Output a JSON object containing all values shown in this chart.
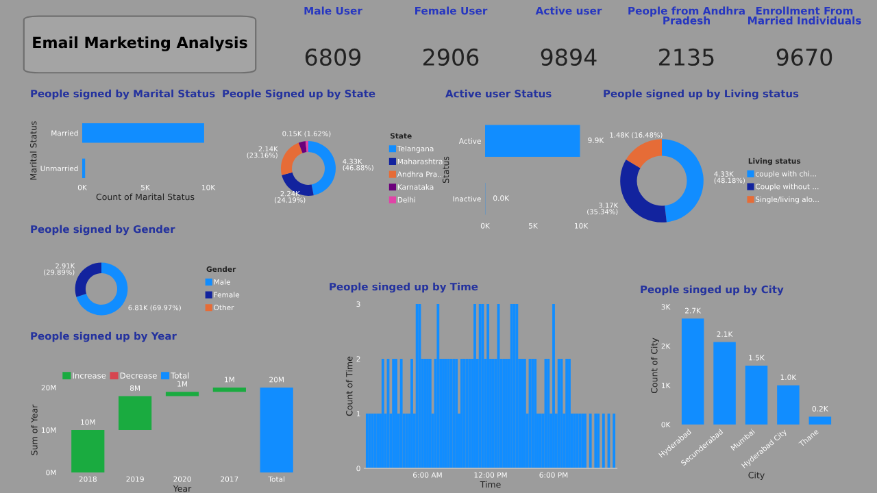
{
  "chart_data": [
    {
      "type": "other",
      "title": "Email Marketing Analysis"
    },
    {
      "type": "other",
      "categories": [
        "Male User",
        "Female User",
        "Active user",
        "People from Andhra\nPradesh",
        "Enrollment From\nMarried Individuals"
      ],
      "values": [
        6809,
        2906,
        9894,
        2135,
        9670
      ],
      "data_labels": true
    },
    {
      "type": "bar",
      "title": "People signed by Marital Status",
      "orientation": "horizontal",
      "categories": [
        "Married",
        "Unmarried"
      ],
      "values": [
        9670,
        230
      ],
      "color": "#118dff",
      "xlim": [
        0,
        10000
      ],
      "xticks": [
        {
          "value": 0,
          "label": "0K"
        },
        {
          "value": 5000,
          "label": "5K"
        },
        {
          "value": 10000,
          "label": "10K"
        }
      ],
      "xlabel": "Count of Marital Status",
      "ylabel": "Marital Status"
    },
    {
      "type": "donut",
      "title": "People Signed up by State",
      "legend_title": "State",
      "legend": "right",
      "categories": [
        "Telangana",
        "Maharashtra",
        "Andhra Pra...",
        "Karnataka",
        "Delhi"
      ],
      "values": [
        46.88,
        24.19,
        23.16,
        4.15,
        1.62
      ],
      "colors": [
        "#118dff",
        "#12239e",
        "#e66c37",
        "#6b007b",
        "#e044a7"
      ],
      "value_labels": [
        "4.33K\n(46.88%)",
        "2.24K\n(24.19%)",
        "2.14K\n(23.16%)",
        null,
        "0.15K (1.62%)"
      ]
    },
    {
      "type": "bar",
      "title": "Active user Status",
      "orientation": "horizontal",
      "categories": [
        "Active",
        "Inactive"
      ],
      "values": [
        9894,
        20
      ],
      "color": "#118dff",
      "value_labels": [
        "9.9K",
        "0.0K"
      ],
      "xlim": [
        0,
        10000
      ],
      "xticks": [
        {
          "value": 0,
          "label": "0K"
        },
        {
          "value": 5000,
          "label": "5K"
        },
        {
          "value": 10000,
          "label": "10K"
        }
      ],
      "ylabel": "Status"
    },
    {
      "type": "donut",
      "title": "People signed up by Living status",
      "legend_title": "Living status",
      "legend": "right",
      "categories": [
        "couple with chi...",
        "Couple without ...",
        "Single/living alo..."
      ],
      "values": [
        48.18,
        35.34,
        16.48
      ],
      "colors": [
        "#118dff",
        "#12239e",
        "#e66c37"
      ],
      "value_labels": [
        "4.33K\n(48.18%)",
        "3.17K\n(35.34%)",
        "1.48K (16.48%)"
      ]
    },
    {
      "type": "donut",
      "title": "People signed by Gender",
      "legend_title": "Gender",
      "legend": "right",
      "categories": [
        "Male",
        "Female",
        "Other"
      ],
      "values": [
        69.97,
        29.89,
        null
      ],
      "colors": [
        "#118dff",
        "#12239e",
        "#e66c37"
      ],
      "value_labels": [
        "6.81K (69.97%)",
        "2.91K\n(29.89%)",
        null
      ]
    },
    {
      "type": "bar",
      "title": "People signed up by Year",
      "legend": "top",
      "categories": [
        "2018",
        "2019",
        "2020",
        "2017",
        "Total"
      ],
      "series": [
        {
          "name": "Increase",
          "color": "#1aab40",
          "values": [
            10,
            8,
            1,
            1,
            null
          ],
          "base": [
            0,
            10,
            18,
            19,
            null
          ]
        },
        {
          "name": "Decrease",
          "color": "#d64550",
          "values": [
            null,
            null,
            null,
            null,
            null
          ]
        },
        {
          "name": "Total",
          "color": "#118dff",
          "values": [
            null,
            null,
            null,
            null,
            20
          ],
          "base": [
            null,
            null,
            null,
            null,
            0
          ]
        }
      ],
      "value_labels": [
        "10M",
        "8M",
        "1M",
        "1M",
        "20M"
      ],
      "ylim": [
        0,
        20
      ],
      "yticks": [
        {
          "value": 0,
          "label": "0M"
        },
        {
          "value": 10,
          "label": "10M"
        },
        {
          "value": 20,
          "label": "20M"
        }
      ],
      "xlabel": "Year",
      "ylabel": "Sum of Year"
    },
    {
      "type": "bar",
      "title": "People singed up by Time",
      "color": "#118dff",
      "x": [
        0.25,
        0.5,
        0.75,
        1.0,
        1.25,
        1.5,
        1.75,
        2.0,
        2.25,
        2.5,
        2.75,
        3.0,
        3.25,
        3.5,
        3.75,
        4.0,
        4.25,
        4.5,
        4.75,
        5.0,
        5.25,
        5.5,
        5.75,
        6.0,
        6.25,
        6.5,
        6.75,
        7.0,
        7.25,
        7.5,
        7.75,
        8.0,
        8.25,
        8.5,
        8.75,
        9.0,
        9.25,
        9.5,
        9.75,
        10.0,
        10.25,
        10.5,
        10.75,
        11.0,
        11.25,
        11.5,
        11.75,
        12.0,
        12.25,
        12.5,
        12.75,
        13.0,
        13.25,
        13.5,
        13.75,
        14.0,
        14.25,
        14.5,
        14.75,
        15.0,
        15.25,
        15.5,
        15.75,
        16.0,
        16.25,
        16.5,
        16.75,
        17.0,
        17.25,
        17.5,
        17.75,
        18.0,
        18.25,
        18.5,
        18.75,
        19.0,
        19.25,
        19.5,
        19.75,
        20.0,
        20.25,
        20.5,
        20.75,
        21.0,
        21.5,
        22.0,
        22.25,
        22.75,
        23.25,
        23.75
      ],
      "values": [
        1,
        1,
        1,
        1,
        1,
        1,
        2,
        1,
        2,
        1,
        2,
        2,
        1,
        2,
        1,
        1,
        1,
        2,
        1,
        3,
        3,
        2,
        2,
        2,
        2,
        1,
        2,
        3,
        2,
        2,
        2,
        2,
        2,
        2,
        2,
        1,
        2,
        2,
        2,
        2,
        2,
        3,
        2,
        3,
        3,
        2,
        3,
        2,
        2,
        2,
        3,
        2,
        2,
        2,
        2,
        3,
        3,
        3,
        2,
        2,
        2,
        1,
        2,
        2,
        2,
        1,
        1,
        1,
        2,
        2,
        1,
        3,
        1,
        2,
        2,
        1,
        2,
        2,
        1,
        1,
        1,
        1,
        1,
        1,
        1,
        1,
        1,
        1,
        1,
        1
      ],
      "xlim": [
        0,
        24
      ],
      "xticks": [
        {
          "value": 6,
          "label": "6:00 AM"
        },
        {
          "value": 12,
          "label": "12:00 PM"
        },
        {
          "value": 18,
          "label": "6:00 PM"
        }
      ],
      "ylim": [
        0,
        3
      ],
      "yticks": [
        0,
        1,
        2,
        3
      ],
      "xlabel": "Time",
      "ylabel": "Count of Time"
    },
    {
      "type": "bar",
      "title": "People singed up by City",
      "categories": [
        "Hyderabad",
        "Secunderabad",
        "Mumbai",
        "Hyderabad City",
        "Thane"
      ],
      "values": [
        2700,
        2100,
        1500,
        1000,
        200
      ],
      "color": "#118dff",
      "value_labels": [
        "2.7K",
        "2.1K",
        "1.5K",
        "1.0K",
        "0.2K"
      ],
      "ylim": [
        0,
        3000
      ],
      "yticks": [
        {
          "value": 0,
          "label": "0K"
        },
        {
          "value": 1000,
          "label": "1K"
        },
        {
          "value": 2000,
          "label": "2K"
        },
        {
          "value": 3000,
          "label": "3K"
        }
      ],
      "xlabel": "City",
      "ylabel": "Count of City"
    }
  ]
}
